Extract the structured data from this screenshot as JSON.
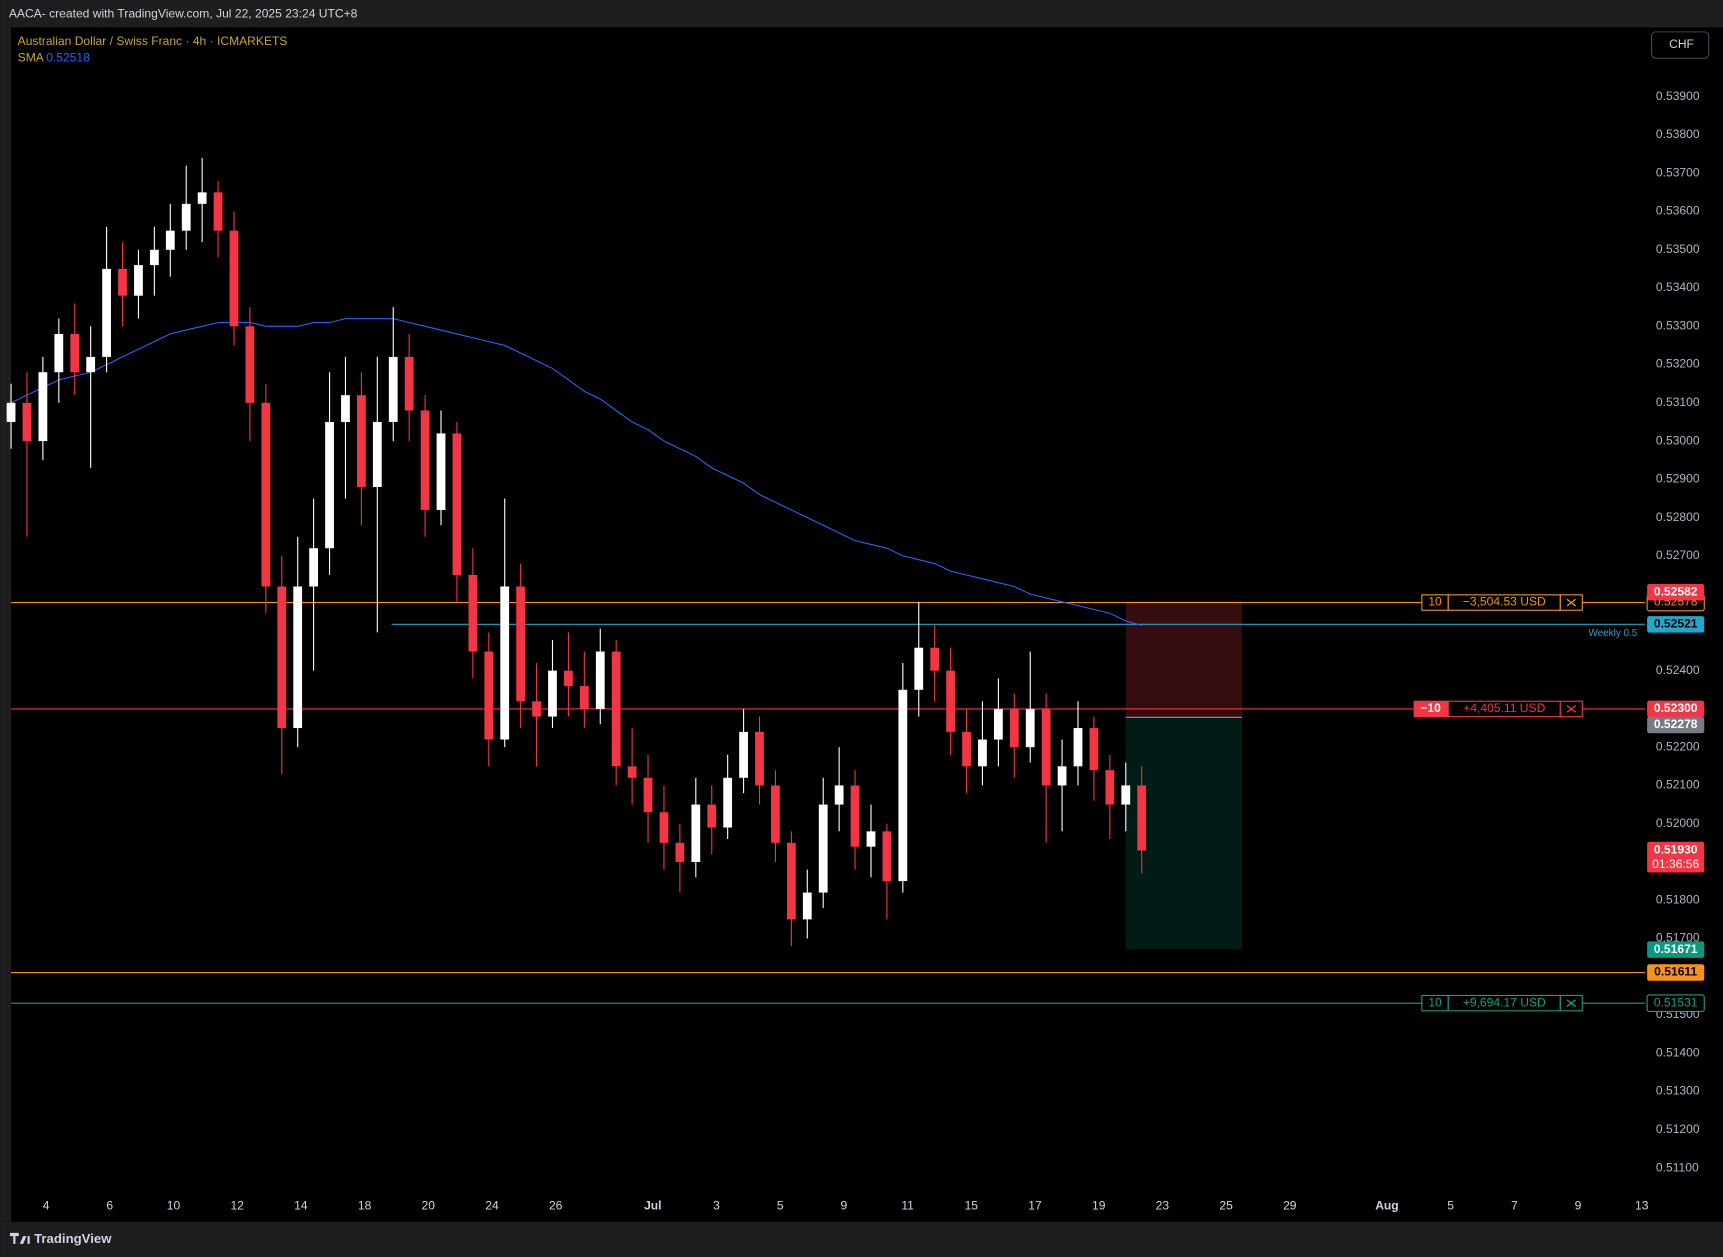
{
  "header": {
    "text": "AACA- created with TradingView.com, Jul 22, 2025 23:24 UTC+8"
  },
  "footer": {
    "brand": "TradingView"
  },
  "chart_data": {
    "type": "candlestick",
    "title": "Australian Dollar / Swiss Franc · 4h · ICMARKETS",
    "currency": "CHF",
    "up_color": "#ffffff",
    "down_color": "#f23645",
    "open": [
      0.5305,
      0.531,
      0.53,
      0.5318,
      0.5328,
      0.5318,
      0.5322,
      0.5345,
      0.5338,
      0.5346,
      0.535,
      0.5355,
      0.5362,
      0.5365,
      0.5355,
      0.533,
      0.531,
      0.5262,
      0.5225,
      0.5262,
      0.5272,
      0.5305,
      0.5312,
      0.5288,
      0.5305,
      0.5322,
      0.5308,
      0.5282,
      0.5302,
      0.5265,
      0.5245,
      0.5222,
      0.5262,
      0.5232,
      0.5228,
      0.524,
      0.5236,
      0.523,
      0.5245,
      0.5215,
      0.5212,
      0.5203,
      0.5195,
      0.519,
      0.5205,
      0.5199,
      0.5212,
      0.5224,
      0.521,
      0.5195,
      0.5175,
      0.5182,
      0.5205,
      0.521,
      0.5194,
      0.5198,
      0.5185,
      0.5235,
      0.5246,
      0.524,
      0.5224,
      0.5215,
      0.5222,
      0.523,
      0.522,
      0.523,
      0.521,
      0.5215,
      0.5225,
      0.5214,
      0.5205,
      0.521
    ],
    "high": [
      0.5315,
      0.5318,
      0.5322,
      0.5332,
      0.5336,
      0.533,
      0.5356,
      0.5352,
      0.535,
      0.5356,
      0.5362,
      0.5372,
      0.5374,
      0.5368,
      0.536,
      0.5335,
      0.5315,
      0.527,
      0.5275,
      0.5285,
      0.5318,
      0.5322,
      0.5318,
      0.5322,
      0.5335,
      0.5328,
      0.5312,
      0.5308,
      0.5305,
      0.5272,
      0.525,
      0.5285,
      0.5268,
      0.5242,
      0.5248,
      0.525,
      0.5245,
      0.5251,
      0.5248,
      0.5225,
      0.5218,
      0.521,
      0.52,
      0.5212,
      0.521,
      0.5218,
      0.523,
      0.5228,
      0.5214,
      0.5198,
      0.5188,
      0.5212,
      0.522,
      0.5214,
      0.5205,
      0.52,
      0.5242,
      0.5258,
      0.5252,
      0.5246,
      0.523,
      0.5232,
      0.5238,
      0.5234,
      0.5245,
      0.5234,
      0.5222,
      0.5232,
      0.5228,
      0.5218,
      0.5216,
      0.5215
    ],
    "low": [
      0.5298,
      0.5275,
      0.5295,
      0.531,
      0.5312,
      0.5293,
      0.5318,
      0.533,
      0.5332,
      0.5338,
      0.5343,
      0.535,
      0.5352,
      0.5348,
      0.5325,
      0.53,
      0.5255,
      0.5213,
      0.522,
      0.524,
      0.5265,
      0.5285,
      0.5278,
      0.525,
      0.53,
      0.53,
      0.5275,
      0.5278,
      0.5258,
      0.5238,
      0.5215,
      0.522,
      0.5225,
      0.5215,
      0.5225,
      0.5228,
      0.5225,
      0.5226,
      0.521,
      0.5205,
      0.5195,
      0.5188,
      0.5182,
      0.5186,
      0.5192,
      0.5196,
      0.5208,
      0.5205,
      0.519,
      0.5168,
      0.517,
      0.5178,
      0.5198,
      0.5188,
      0.5186,
      0.5175,
      0.5182,
      0.5228,
      0.5232,
      0.5218,
      0.5208,
      0.521,
      0.5215,
      0.5212,
      0.5216,
      0.5195,
      0.5198,
      0.521,
      0.5206,
      0.5196,
      0.5198,
      0.5187
    ],
    "close": [
      0.531,
      0.53,
      0.5318,
      0.5328,
      0.5318,
      0.5322,
      0.5345,
      0.5338,
      0.5346,
      0.535,
      0.5355,
      0.5362,
      0.5365,
      0.5355,
      0.533,
      0.531,
      0.5262,
      0.5225,
      0.5262,
      0.5272,
      0.5305,
      0.5312,
      0.5288,
      0.5305,
      0.5322,
      0.5308,
      0.5282,
      0.5302,
      0.5265,
      0.5245,
      0.5222,
      0.5262,
      0.5232,
      0.5228,
      0.524,
      0.5236,
      0.523,
      0.5245,
      0.5215,
      0.5212,
      0.5203,
      0.5195,
      0.519,
      0.5205,
      0.5199,
      0.5212,
      0.5224,
      0.521,
      0.5195,
      0.5175,
      0.5182,
      0.5205,
      0.521,
      0.5194,
      0.5198,
      0.5185,
      0.5235,
      0.5246,
      0.524,
      0.5224,
      0.5215,
      0.5222,
      0.523,
      0.522,
      0.523,
      0.521,
      0.5215,
      0.5225,
      0.5214,
      0.5205,
      0.521,
      0.5193
    ],
    "sma": {
      "name": "SMA",
      "color": "#2962ff",
      "values": [
        0.531,
        0.5312,
        0.5314,
        0.5316,
        0.5317,
        0.5318,
        0.532,
        0.5322,
        0.5324,
        0.5326,
        0.5328,
        0.5329,
        0.533,
        0.5331,
        0.5331,
        0.5331,
        0.533,
        0.533,
        0.533,
        0.5331,
        0.5331,
        0.5332,
        0.5332,
        0.5332,
        0.5332,
        0.5331,
        0.533,
        0.5329,
        0.5328,
        0.5327,
        0.5326,
        0.5325,
        0.5323,
        0.5321,
        0.5319,
        0.5316,
        0.5313,
        0.5311,
        0.5308,
        0.5305,
        0.5303,
        0.53,
        0.5298,
        0.5296,
        0.5293,
        0.5291,
        0.5289,
        0.5286,
        0.5284,
        0.5282,
        0.528,
        0.5278,
        0.5276,
        0.5274,
        0.5273,
        0.5272,
        0.527,
        0.5269,
        0.5268,
        0.5266,
        0.5265,
        0.5264,
        0.5263,
        0.5262,
        0.526,
        0.5259,
        0.5258,
        0.5257,
        0.5256,
        0.5255,
        0.5253,
        0.52518
      ]
    },
    "price_lines": [
      {
        "price": 0.52578,
        "color": "#f7931a",
        "qty": "10",
        "pnl": "−3,504.53 USD"
      },
      {
        "price": 0.52521,
        "color": "#22a7c9",
        "text": "Weekly 0.5",
        "x_start": 23.9
      },
      {
        "price": 0.523,
        "price_label": "0.52300",
        "color": "#f23645",
        "qty": "−10",
        "pnl": "+4,405.11 USD"
      },
      {
        "price": 0.51611,
        "color": "#f7931a"
      },
      {
        "price": 0.51531,
        "color": "#1b9e87",
        "qty": "10",
        "pnl": "+9,694.17 USD"
      }
    ],
    "position": {
      "entry": 0.52278,
      "stop": 0.52582,
      "target": 0.51671,
      "x_start": 70.0,
      "x_end": 77.3
    },
    "current_price": {
      "value": 0.5193,
      "label": "0.51930",
      "countdown": "01:36:56"
    },
    "xlim": [
      0,
      102.6
    ],
    "xticks": [
      {
        "value": 2.2,
        "label": "4"
      },
      {
        "value": 6.2,
        "label": "6"
      },
      {
        "value": 10.2,
        "label": "10"
      },
      {
        "value": 14.2,
        "label": "12"
      },
      {
        "value": 18.2,
        "label": "14"
      },
      {
        "value": 22.2,
        "label": "18"
      },
      {
        "value": 26.2,
        "label": "20"
      },
      {
        "value": 30.2,
        "label": "24"
      },
      {
        "value": 34.2,
        "label": "26"
      },
      {
        "value": 40.3,
        "label": "Jul"
      },
      {
        "value": 44.3,
        "label": "3"
      },
      {
        "value": 48.3,
        "label": "5"
      },
      {
        "value": 52.3,
        "label": "9"
      },
      {
        "value": 56.3,
        "label": "11"
      },
      {
        "value": 60.3,
        "label": "15"
      },
      {
        "value": 64.3,
        "label": "17"
      },
      {
        "value": 68.3,
        "label": "19"
      },
      {
        "value": 72.3,
        "label": "23"
      },
      {
        "value": 76.3,
        "label": "25"
      },
      {
        "value": 80.3,
        "label": "29"
      },
      {
        "value": 86.4,
        "label": "Aug"
      },
      {
        "value": 90.4,
        "label": "5"
      },
      {
        "value": 94.4,
        "label": "7"
      },
      {
        "value": 98.4,
        "label": "9"
      },
      {
        "value": 102.4,
        "label": "13"
      }
    ],
    "ylim": [
      0.51037,
      0.54081
    ],
    "yticks": [
      {
        "value": 0.511,
        "label": "0.51100"
      },
      {
        "value": 0.512,
        "label": "0.51200"
      },
      {
        "value": 0.513,
        "label": "0.51300"
      },
      {
        "value": 0.514,
        "label": "0.51400"
      },
      {
        "value": 0.515,
        "label": "0.51500"
      },
      {
        "value": 0.517,
        "label": "0.51700"
      },
      {
        "value": 0.518,
        "label": "0.51800"
      },
      {
        "value": 0.52,
        "label": "0.52000"
      },
      {
        "value": 0.521,
        "label": "0.52100"
      },
      {
        "value": 0.522,
        "label": "0.52200"
      },
      {
        "value": 0.524,
        "label": "0.52400"
      },
      {
        "value": 0.527,
        "label": "0.52700"
      },
      {
        "value": 0.528,
        "label": "0.52800"
      },
      {
        "value": 0.529,
        "label": "0.52900"
      },
      {
        "value": 0.53,
        "label": "0.53000"
      },
      {
        "value": 0.531,
        "label": "0.53100"
      },
      {
        "value": 0.532,
        "label": "0.53200"
      },
      {
        "value": 0.533,
        "label": "0.53300"
      },
      {
        "value": 0.534,
        "label": "0.53400"
      },
      {
        "value": 0.535,
        "label": "0.53500"
      },
      {
        "value": 0.536,
        "label": "0.53600"
      },
      {
        "value": 0.537,
        "label": "0.53700"
      },
      {
        "value": 0.538,
        "label": "0.53800"
      },
      {
        "value": 0.539,
        "label": "0.53900"
      }
    ]
  }
}
